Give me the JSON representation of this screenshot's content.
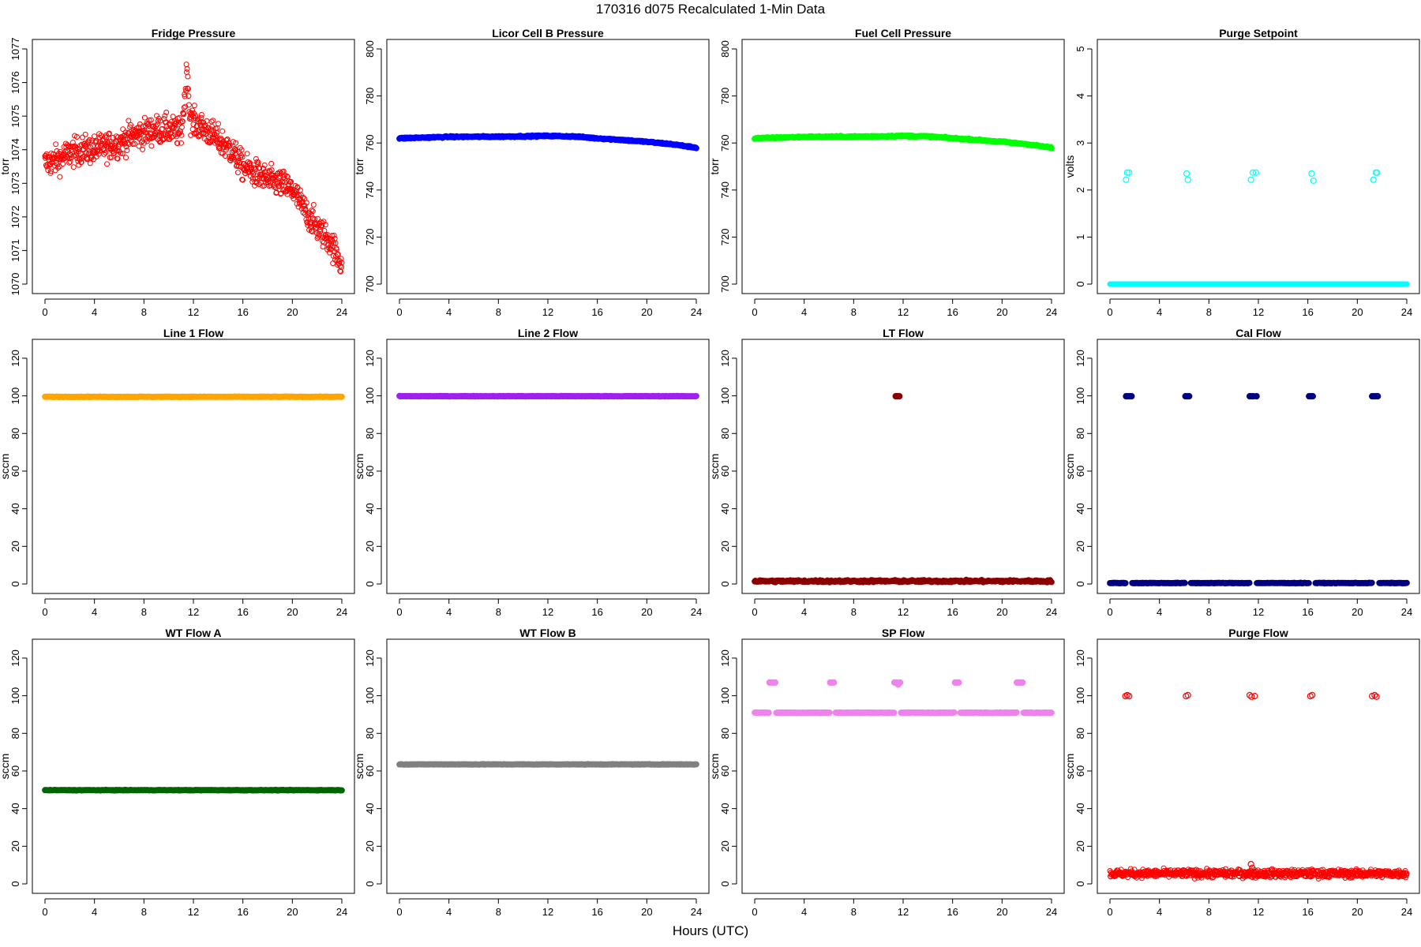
{
  "figure": {
    "title": "170316   d075   Recalculated 1-Min Data",
    "xlabel": "Hours (UTC)"
  },
  "chart_data": [
    {
      "type": "scatter",
      "title": "Fridge Pressure",
      "ylabel": "torr",
      "xlim": [
        0,
        24
      ],
      "ylim": [
        1070,
        1077
      ],
      "xticks": [
        0,
        4,
        8,
        12,
        16,
        20,
        24
      ],
      "yticks": [
        1070,
        1071,
        1072,
        1073,
        1074,
        1075,
        1076,
        1077
      ],
      "color": "#ff0000",
      "marker": "open",
      "series": [
        {
          "x": [
            0,
            1,
            2,
            3,
            4,
            5,
            6,
            7,
            8,
            9,
            10,
            11,
            11.3,
            11.5,
            11.7,
            12,
            13,
            14,
            15,
            16,
            17,
            18,
            19,
            20,
            21,
            22,
            23,
            24
          ],
          "y": [
            1073.6,
            1073.7,
            1073.9,
            1074.0,
            1074.0,
            1074.1,
            1074.2,
            1074.4,
            1074.5,
            1074.6,
            1074.6,
            1074.5,
            1075.5,
            1076.5,
            1075.0,
            1074.8,
            1074.6,
            1074.3,
            1074.0,
            1073.5,
            1073.3,
            1073.1,
            1073.0,
            1072.8,
            1072.2,
            1071.7,
            1071.3,
            1070.6
          ]
        }
      ],
      "noise": 0.3
    },
    {
      "type": "scatter",
      "title": "Licor Cell B Pressure",
      "ylabel": "torr",
      "xlim": [
        0,
        24
      ],
      "ylim": [
        700,
        800
      ],
      "xticks": [
        0,
        4,
        8,
        12,
        16,
        20,
        24
      ],
      "yticks": [
        700,
        720,
        740,
        760,
        780,
        800
      ],
      "color": "#0000ff",
      "marker": "filled",
      "series": [
        {
          "x": [
            0,
            4,
            8,
            12,
            14,
            16,
            18,
            20,
            22,
            24
          ],
          "y": [
            762,
            762.6,
            762.7,
            763,
            762.8,
            762,
            761.3,
            760.5,
            759.5,
            758
          ]
        }
      ],
      "noise": 0.2
    },
    {
      "type": "scatter",
      "title": "Fuel Cell Pressure",
      "ylabel": "torr",
      "xlim": [
        0,
        24
      ],
      "ylim": [
        700,
        800
      ],
      "xticks": [
        0,
        4,
        8,
        12,
        16,
        20,
        24
      ],
      "yticks": [
        700,
        720,
        740,
        760,
        780,
        800
      ],
      "color": "#00ff00",
      "marker": "filled",
      "series": [
        {
          "x": [
            0,
            4,
            8,
            12,
            14,
            16,
            18,
            20,
            22,
            24
          ],
          "y": [
            762,
            762.6,
            762.7,
            763,
            762.8,
            762,
            761.3,
            760.5,
            759.5,
            758
          ]
        }
      ],
      "noise": 0.2
    },
    {
      "type": "scatter",
      "title": "Purge Setpoint",
      "ylabel": "volts",
      "xlim": [
        0,
        24
      ],
      "ylim": [
        0,
        5
      ],
      "xticks": [
        0,
        4,
        8,
        12,
        16,
        20,
        24
      ],
      "yticks": [
        0,
        1,
        2,
        3,
        4,
        5
      ],
      "color": "#00ffff",
      "marker": "open",
      "series": [
        {
          "x": [
            0,
            24
          ],
          "y": [
            0,
            0
          ]
        }
      ],
      "noise": 0,
      "extra_points": [
        {
          "x": 1.3,
          "y": 2.22
        },
        {
          "x": 1.4,
          "y": 2.37
        },
        {
          "x": 1.55,
          "y": 2.37
        },
        {
          "x": 6.2,
          "y": 2.35
        },
        {
          "x": 6.3,
          "y": 2.22
        },
        {
          "x": 11.4,
          "y": 2.22
        },
        {
          "x": 11.55,
          "y": 2.37
        },
        {
          "x": 11.8,
          "y": 2.37
        },
        {
          "x": 16.3,
          "y": 2.35
        },
        {
          "x": 16.45,
          "y": 2.2
        },
        {
          "x": 21.3,
          "y": 2.22
        },
        {
          "x": 21.5,
          "y": 2.37
        },
        {
          "x": 21.6,
          "y": 2.37
        }
      ]
    },
    {
      "type": "scatter",
      "title": "Line 1 Flow",
      "ylabel": "sccm",
      "xlim": [
        0,
        24
      ],
      "ylim": [
        0,
        125
      ],
      "xticks": [
        0,
        4,
        8,
        12,
        16,
        20,
        24
      ],
      "yticks": [
        0,
        20,
        40,
        60,
        80,
        100,
        120
      ],
      "color": "#ffa500",
      "marker": "filled",
      "series": [
        {
          "x": [
            0,
            24
          ],
          "y": [
            99.5,
            99.5
          ]
        }
      ],
      "noise": 0.1
    },
    {
      "type": "scatter",
      "title": "Line 2 Flow",
      "ylabel": "sccm",
      "xlim": [
        0,
        24
      ],
      "ylim": [
        0,
        125
      ],
      "xticks": [
        0,
        4,
        8,
        12,
        16,
        20,
        24
      ],
      "yticks": [
        0,
        20,
        40,
        60,
        80,
        100,
        120
      ],
      "color": "#a020f0",
      "marker": "filled",
      "series": [
        {
          "x": [
            0,
            24
          ],
          "y": [
            99.8,
            99.8
          ]
        }
      ],
      "noise": 0.1
    },
    {
      "type": "scatter",
      "title": "LT Flow",
      "ylabel": "sccm",
      "xlim": [
        0,
        24
      ],
      "ylim": [
        0,
        125
      ],
      "xticks": [
        0,
        4,
        8,
        12,
        16,
        20,
        24
      ],
      "yticks": [
        0,
        20,
        40,
        60,
        80,
        100,
        120
      ],
      "color": "#8b0000",
      "marker": "filled",
      "series": [
        {
          "x": [
            0,
            24
          ],
          "y": [
            1.5,
            1.5
          ]
        }
      ],
      "noise": 0.4,
      "extra_points": [
        {
          "x": 11.4,
          "y": 99.8
        },
        {
          "x": 11.5,
          "y": 99.8
        },
        {
          "x": 11.6,
          "y": 99.8
        },
        {
          "x": 11.7,
          "y": 99.8
        }
      ]
    },
    {
      "type": "scatter",
      "title": "Cal Flow",
      "ylabel": "sccm",
      "xlim": [
        0,
        24
      ],
      "ylim": [
        0,
        125
      ],
      "xticks": [
        0,
        4,
        8,
        12,
        16,
        20,
        24
      ],
      "yticks": [
        0,
        20,
        40,
        60,
        80,
        100,
        120
      ],
      "color": "#000080",
      "marker": "filled",
      "series": [
        {
          "x": [
            0,
            24
          ],
          "y": [
            0.5,
            0.5
          ]
        }
      ],
      "noise": 0.1,
      "gaps": [
        [
          1.3,
          1.75
        ],
        [
          6.1,
          6.5
        ],
        [
          11.3,
          11.85
        ],
        [
          16.1,
          16.6
        ],
        [
          21.2,
          21.75
        ]
      ],
      "extra_points": [
        {
          "x": 1.3,
          "y": 99.8
        },
        {
          "x": 1.45,
          "y": 99.8
        },
        {
          "x": 1.6,
          "y": 99.8
        },
        {
          "x": 1.75,
          "y": 99.8
        },
        {
          "x": 6.1,
          "y": 99.8
        },
        {
          "x": 6.25,
          "y": 99.8
        },
        {
          "x": 6.4,
          "y": 99.8
        },
        {
          "x": 11.3,
          "y": 99.8
        },
        {
          "x": 11.45,
          "y": 99.8
        },
        {
          "x": 11.6,
          "y": 99.8
        },
        {
          "x": 11.85,
          "y": 99.8
        },
        {
          "x": 16.1,
          "y": 99.8
        },
        {
          "x": 16.25,
          "y": 99.8
        },
        {
          "x": 16.4,
          "y": 99.8
        },
        {
          "x": 21.2,
          "y": 99.8
        },
        {
          "x": 21.35,
          "y": 99.8
        },
        {
          "x": 21.5,
          "y": 99.8
        },
        {
          "x": 21.65,
          "y": 99.8
        }
      ]
    },
    {
      "type": "scatter",
      "title": "WT Flow A",
      "ylabel": "sccm",
      "xlim": [
        0,
        24
      ],
      "ylim": [
        0,
        125
      ],
      "xticks": [
        0,
        4,
        8,
        12,
        16,
        20,
        24
      ],
      "yticks": [
        0,
        20,
        40,
        60,
        80,
        100,
        120
      ],
      "color": "#006400",
      "marker": "filled",
      "series": [
        {
          "x": [
            0,
            24
          ],
          "y": [
            49.8,
            49.8
          ]
        }
      ],
      "noise": 0.1
    },
    {
      "type": "scatter",
      "title": "WT Flow B",
      "ylabel": "sccm",
      "xlim": [
        0,
        24
      ],
      "ylim": [
        0,
        125
      ],
      "xticks": [
        0,
        4,
        8,
        12,
        16,
        20,
        24
      ],
      "yticks": [
        0,
        20,
        40,
        60,
        80,
        100,
        120
      ],
      "color": "#808080",
      "marker": "filled",
      "series": [
        {
          "x": [
            0,
            24
          ],
          "y": [
            63.5,
            63.5
          ]
        }
      ],
      "noise": 0.1
    },
    {
      "type": "scatter",
      "title": "SP Flow",
      "ylabel": "sccm",
      "xlim": [
        0,
        24
      ],
      "ylim": [
        0,
        125
      ],
      "xticks": [
        0,
        4,
        8,
        12,
        16,
        20,
        24
      ],
      "yticks": [
        0,
        20,
        40,
        60,
        80,
        100,
        120
      ],
      "color": "#ee82ee",
      "marker": "filled",
      "series": [
        {
          "x": [
            0,
            24
          ],
          "y": [
            91,
            91
          ]
        }
      ],
      "noise": 0.1,
      "gaps": [
        [
          1.2,
          1.7
        ],
        [
          6.1,
          6.5
        ],
        [
          11.3,
          11.8
        ],
        [
          16.2,
          16.6
        ],
        [
          21.2,
          21.7
        ]
      ],
      "extra_points": [
        {
          "x": 1.2,
          "y": 107
        },
        {
          "x": 1.35,
          "y": 107
        },
        {
          "x": 1.5,
          "y": 107
        },
        {
          "x": 1.65,
          "y": 107
        },
        {
          "x": 6.1,
          "y": 107
        },
        {
          "x": 6.25,
          "y": 107
        },
        {
          "x": 6.4,
          "y": 107
        },
        {
          "x": 11.3,
          "y": 107
        },
        {
          "x": 11.45,
          "y": 107
        },
        {
          "x": 11.6,
          "y": 106
        },
        {
          "x": 11.75,
          "y": 107
        },
        {
          "x": 16.2,
          "y": 107
        },
        {
          "x": 16.35,
          "y": 107
        },
        {
          "x": 16.5,
          "y": 107
        },
        {
          "x": 21.2,
          "y": 107
        },
        {
          "x": 21.35,
          "y": 107
        },
        {
          "x": 21.5,
          "y": 107
        },
        {
          "x": 21.65,
          "y": 107
        }
      ]
    },
    {
      "type": "scatter",
      "title": "Purge Flow",
      "ylabel": "sccm",
      "xlim": [
        0,
        24
      ],
      "ylim": [
        0,
        125
      ],
      "xticks": [
        0,
        4,
        8,
        12,
        16,
        20,
        24
      ],
      "yticks": [
        0,
        20,
        40,
        60,
        80,
        100,
        120
      ],
      "color": "#ff0000",
      "marker": "open",
      "series": [
        {
          "x": [
            0,
            24
          ],
          "y": [
            5.5,
            5.5
          ]
        }
      ],
      "noise": 1.5,
      "extra_points": [
        {
          "x": 1.25,
          "y": 99.8
        },
        {
          "x": 1.4,
          "y": 100.3
        },
        {
          "x": 1.55,
          "y": 99.8
        },
        {
          "x": 6.15,
          "y": 99.8
        },
        {
          "x": 6.3,
          "y": 100.3
        },
        {
          "x": 11.3,
          "y": 100.3
        },
        {
          "x": 11.45,
          "y": 99.5
        },
        {
          "x": 11.7,
          "y": 99.8
        },
        {
          "x": 16.2,
          "y": 99.8
        },
        {
          "x": 16.35,
          "y": 100.3
        },
        {
          "x": 21.2,
          "y": 99.8
        },
        {
          "x": 21.4,
          "y": 100.3
        },
        {
          "x": 21.55,
          "y": 99.5
        },
        {
          "x": 11.4,
          "y": 10.5
        },
        {
          "x": 11.5,
          "y": 8.5
        }
      ]
    }
  ]
}
